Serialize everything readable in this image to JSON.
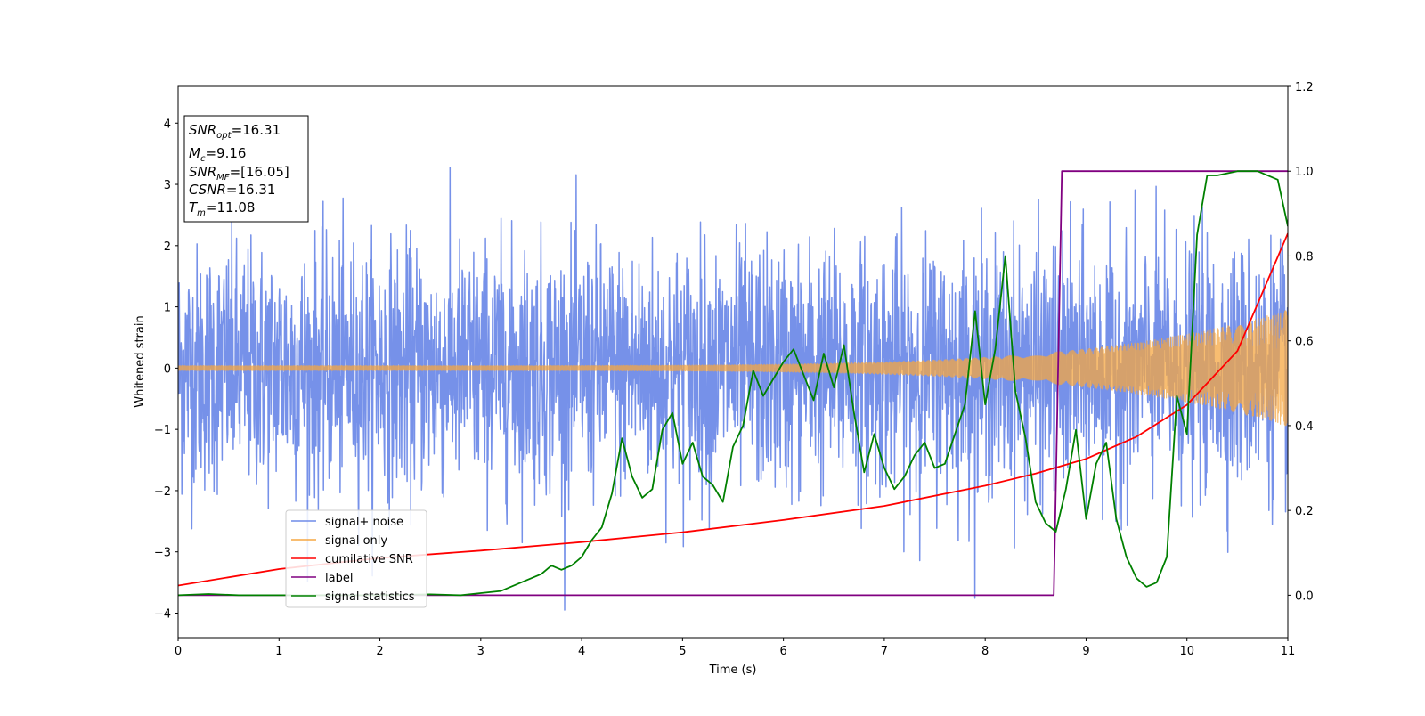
{
  "chart_data": {
    "type": "line",
    "xlabel": "Time (s)",
    "ylabel": "Whitened strain",
    "xlim": [
      0,
      11
    ],
    "ylim_left": [
      -4.4,
      4.6
    ],
    "ylim_right": [
      -0.1,
      1.2
    ],
    "x_ticks": [
      "0",
      "1",
      "2",
      "3",
      "4",
      "5",
      "6",
      "7",
      "8",
      "9",
      "10",
      "11"
    ],
    "y_ticks_left": [
      "−4",
      "−3",
      "−2",
      "−1",
      "0",
      "1",
      "2",
      "3",
      "4"
    ],
    "y_ticks_right": [
      "0.0",
      "0.2",
      "0.4",
      "0.6",
      "0.8",
      "1.0",
      "1.2"
    ],
    "grid": false,
    "legend_position": "lower-left",
    "annotation": {
      "lines": [
        {
          "main": "SNR",
          "sub": "opt",
          "rest": "=16.31"
        },
        {
          "main": "M",
          "sub": "c",
          "rest": "=9.16"
        },
        {
          "main": "SNR",
          "sub": "MF",
          "rest": "=[16.05]"
        },
        {
          "main": "CSNR",
          "sub": "",
          "rest": "=16.31"
        },
        {
          "main": "T",
          "sub": "m",
          "rest": "=11.08"
        }
      ]
    },
    "series": [
      {
        "name": "signal+ noise",
        "axis": "left",
        "color": "#6f8be8",
        "kind": "noise",
        "std": 1.0,
        "x_range": [
          0,
          11
        ],
        "samples": 3000
      },
      {
        "name": "signal only",
        "axis": "left",
        "color": "#f5a742",
        "kind": "chirp",
        "amplitude_start": 0.04,
        "amplitude_end": 0.95,
        "x_range": [
          0,
          11
        ]
      },
      {
        "name": "cumilative SNR",
        "axis": "left",
        "color": "#ff0000",
        "x": [
          0,
          1,
          2,
          3,
          4,
          5,
          6,
          7,
          8,
          8.5,
          9,
          9.5,
          10,
          10.5,
          11
        ],
        "y": [
          -3.55,
          -3.28,
          -3.1,
          -2.98,
          -2.84,
          -2.68,
          -2.48,
          -2.25,
          -1.92,
          -1.72,
          -1.48,
          -1.12,
          -0.6,
          0.28,
          2.2
        ]
      },
      {
        "name": "label",
        "axis": "right",
        "color": "#800080",
        "x": [
          0,
          8.68,
          8.76,
          11
        ],
        "y": [
          0,
          0,
          1,
          1
        ]
      },
      {
        "name": "signal statistics",
        "axis": "right",
        "color": "#008000",
        "x": [
          0,
          0.3,
          0.6,
          1.0,
          1.5,
          2.0,
          2.5,
          2.8,
          3.0,
          3.2,
          3.4,
          3.6,
          3.7,
          3.8,
          3.9,
          4.0,
          4.1,
          4.2,
          4.3,
          4.4,
          4.5,
          4.6,
          4.7,
          4.8,
          4.9,
          5.0,
          5.1,
          5.2,
          5.3,
          5.4,
          5.5,
          5.6,
          5.7,
          5.8,
          5.9,
          6.0,
          6.1,
          6.2,
          6.3,
          6.4,
          6.5,
          6.6,
          6.7,
          6.8,
          6.9,
          7.0,
          7.1,
          7.2,
          7.3,
          7.4,
          7.5,
          7.6,
          7.7,
          7.8,
          7.9,
          8.0,
          8.1,
          8.2,
          8.3,
          8.4,
          8.5,
          8.6,
          8.7,
          8.8,
          8.9,
          9.0,
          9.1,
          9.2,
          9.3,
          9.4,
          9.5,
          9.6,
          9.7,
          9.8,
          9.9,
          10.0,
          10.1,
          10.2,
          10.3,
          10.5,
          10.7,
          10.9,
          11.0
        ],
        "y": [
          0.0,
          0.003,
          0.0,
          0.0,
          0.0,
          0.0,
          0.002,
          0.0,
          0.005,
          0.01,
          0.03,
          0.05,
          0.07,
          0.06,
          0.07,
          0.09,
          0.13,
          0.16,
          0.24,
          0.37,
          0.28,
          0.23,
          0.25,
          0.39,
          0.43,
          0.31,
          0.36,
          0.28,
          0.26,
          0.22,
          0.35,
          0.4,
          0.53,
          0.47,
          0.51,
          0.55,
          0.58,
          0.52,
          0.46,
          0.57,
          0.49,
          0.59,
          0.43,
          0.29,
          0.38,
          0.3,
          0.25,
          0.28,
          0.33,
          0.36,
          0.3,
          0.31,
          0.38,
          0.45,
          0.67,
          0.45,
          0.58,
          0.8,
          0.48,
          0.37,
          0.22,
          0.17,
          0.15,
          0.25,
          0.39,
          0.18,
          0.31,
          0.36,
          0.18,
          0.09,
          0.04,
          0.02,
          0.03,
          0.09,
          0.47,
          0.38,
          0.85,
          0.99,
          0.99,
          1.0,
          1.0,
          0.98,
          0.87
        ]
      }
    ]
  }
}
